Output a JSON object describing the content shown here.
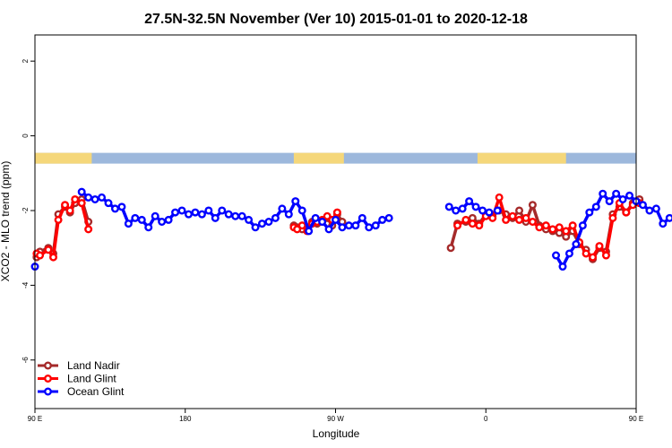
{
  "chart_data": {
    "type": "line",
    "title": "27.5N-32.5N November (Ver 10)   2015-01-01 to 2020-12-18",
    "xlabel": "Longitude",
    "ylabel": "XCO2 - MLO trend (ppm)",
    "xlim": [
      90,
      450
    ],
    "ylim": [
      -7.3,
      2.7
    ],
    "x_ticks": [
      {
        "value": 90,
        "label": "90 E"
      },
      {
        "value": 180,
        "label": "180"
      },
      {
        "value": 270,
        "label": "90 W"
      },
      {
        "value": 360,
        "label": "0"
      },
      {
        "value": 450,
        "label": "90 E"
      },
      {
        "value": 540,
        "label": "180"
      }
    ],
    "y_ticks": [
      {
        "value": 2,
        "label": "2"
      },
      {
        "value": 0,
        "label": "0"
      },
      {
        "value": -2,
        "label": "-2"
      },
      {
        "value": -4,
        "label": "-4"
      },
      {
        "value": -6,
        "label": "-6"
      }
    ],
    "legend_position": "bottom-left",
    "grid": false,
    "land_mask": {
      "y": -0.6,
      "land_color": "#f5d77a",
      "ocean_color": "#9db8dc",
      "land_ranges": [
        [
          90,
          124
        ],
        [
          245,
          275
        ],
        [
          355,
          408
        ],
        [
          500,
          550
        ]
      ]
    },
    "series": [
      {
        "name": "Land Nadir",
        "color": "#a52a2a",
        "segments": [
          [
            [
              91,
              -3.25
            ],
            [
              93,
              -3.1
            ],
            [
              98,
              -3.0
            ],
            [
              101,
              -3.15
            ],
            [
              104,
              -2.1
            ],
            [
              108,
              -1.9
            ],
            [
              111,
              -2.05
            ],
            [
              114,
              -1.8
            ],
            [
              118,
              -1.7
            ],
            [
              122,
              -2.3
            ]
          ],
          [
            [
              245,
              -2.4
            ],
            [
              247,
              -2.45
            ],
            [
              250,
              -2.5
            ],
            [
              253,
              -2.45
            ],
            [
              256,
              -2.3
            ],
            [
              259,
              -2.35
            ],
            [
              262,
              -2.3
            ],
            [
              265,
              -2.2
            ],
            [
              268,
              -2.4
            ],
            [
              271,
              -2.1
            ],
            [
              274,
              -2.3
            ]
          ],
          [
            [
              339,
              -3.0
            ],
            [
              343,
              -2.35
            ],
            [
              348,
              -2.3
            ],
            [
              352,
              -2.2
            ],
            [
              356,
              -2.35
            ],
            [
              360,
              -2.1
            ],
            [
              364,
              -2.15
            ],
            [
              368,
              -2.0
            ],
            [
              372,
              -2.1
            ],
            [
              376,
              -2.2
            ],
            [
              380,
              -2.0
            ],
            [
              384,
              -2.3
            ],
            [
              388,
              -1.85
            ],
            [
              392,
              -2.4
            ],
            [
              396,
              -2.5
            ],
            [
              400,
              -2.55
            ],
            [
              404,
              -2.6
            ],
            [
              408,
              -2.7
            ],
            [
              412,
              -2.55
            ],
            [
              416,
              -2.9
            ],
            [
              420,
              -3.05
            ],
            [
              424,
              -3.3
            ],
            [
              428,
              -3.0
            ],
            [
              432,
              -3.1
            ],
            [
              436,
              -2.1
            ],
            [
              440,
              -1.9
            ],
            [
              444,
              -2.05
            ],
            [
              448,
              -1.8
            ],
            [
              452,
              -1.7
            ]
          ],
          [
            [
              485,
              -2.3
            ]
          ]
        ]
      },
      {
        "name": "Land Glint",
        "color": "#ff0000",
        "segments": [
          [
            [
              91,
              -3.15
            ],
            [
              93,
              -3.2
            ],
            [
              98,
              -3.05
            ],
            [
              101,
              -3.25
            ],
            [
              104,
              -2.25
            ],
            [
              108,
              -1.85
            ],
            [
              111,
              -2.0
            ],
            [
              114,
              -1.7
            ],
            [
              118,
              -1.8
            ],
            [
              122,
              -2.5
            ]
          ],
          [
            [
              245,
              -2.45
            ],
            [
              247,
              -2.5
            ],
            [
              250,
              -2.4
            ],
            [
              253,
              -2.55
            ],
            [
              256,
              -2.35
            ],
            [
              259,
              -2.3
            ],
            [
              262,
              -2.25
            ],
            [
              265,
              -2.15
            ],
            [
              268,
              -2.25
            ],
            [
              271,
              -2.05
            ]
          ],
          [
            [
              343,
              -2.4
            ],
            [
              348,
              -2.25
            ],
            [
              352,
              -2.35
            ],
            [
              356,
              -2.4
            ],
            [
              360,
              -2.15
            ],
            [
              364,
              -2.2
            ],
            [
              368,
              -1.65
            ],
            [
              372,
              -2.25
            ],
            [
              376,
              -2.15
            ],
            [
              380,
              -2.25
            ],
            [
              384,
              -2.2
            ],
            [
              388,
              -2.3
            ],
            [
              392,
              -2.45
            ],
            [
              396,
              -2.4
            ],
            [
              400,
              -2.5
            ],
            [
              404,
              -2.45
            ],
            [
              408,
              -2.55
            ],
            [
              412,
              -2.4
            ],
            [
              416,
              -2.85
            ],
            [
              420,
              -3.15
            ],
            [
              424,
              -3.25
            ],
            [
              428,
              -2.95
            ],
            [
              432,
              -3.2
            ],
            [
              436,
              -2.2
            ],
            [
              440,
              -1.8
            ],
            [
              444,
              -2.05
            ],
            [
              448,
              -1.85
            ],
            [
              452,
              -1.8
            ]
          ],
          [
            [
              485,
              -2.5
            ]
          ]
        ]
      },
      {
        "name": "Ocean Glint",
        "color": "#0000ff",
        "segments": [
          [
            [
              90,
              -3.5
            ]
          ],
          [
            [
              118,
              -1.5
            ],
            [
              122,
              -1.65
            ],
            [
              126,
              -1.7
            ],
            [
              130,
              -1.65
            ],
            [
              134,
              -1.8
            ],
            [
              138,
              -1.95
            ],
            [
              142,
              -1.9
            ],
            [
              146,
              -2.35
            ],
            [
              150,
              -2.2
            ],
            [
              154,
              -2.25
            ],
            [
              158,
              -2.45
            ],
            [
              162,
              -2.15
            ],
            [
              166,
              -2.3
            ],
            [
              170,
              -2.25
            ],
            [
              174,
              -2.05
            ],
            [
              178,
              -2.0
            ],
            [
              182,
              -2.1
            ],
            [
              186,
              -2.05
            ],
            [
              190,
              -2.1
            ],
            [
              194,
              -2.0
            ],
            [
              198,
              -2.2
            ],
            [
              202,
              -2.0
            ],
            [
              206,
              -2.1
            ],
            [
              210,
              -2.15
            ],
            [
              214,
              -2.15
            ],
            [
              218,
              -2.25
            ],
            [
              222,
              -2.45
            ],
            [
              226,
              -2.35
            ],
            [
              230,
              -2.3
            ],
            [
              234,
              -2.2
            ],
            [
              238,
              -1.95
            ],
            [
              242,
              -2.1
            ],
            [
              246,
              -1.75
            ],
            [
              250,
              -2.0
            ],
            [
              254,
              -2.55
            ],
            [
              258,
              -2.2
            ],
            [
              262,
              -2.3
            ],
            [
              266,
              -2.5
            ],
            [
              270,
              -2.25
            ],
            [
              274,
              -2.45
            ],
            [
              278,
              -2.4
            ],
            [
              282,
              -2.4
            ],
            [
              286,
              -2.2
            ],
            [
              290,
              -2.45
            ],
            [
              294,
              -2.4
            ],
            [
              298,
              -2.25
            ],
            [
              302,
              -2.2
            ]
          ],
          [
            [
              338,
              -1.9
            ],
            [
              342,
              -2.0
            ],
            [
              346,
              -1.95
            ],
            [
              350,
              -1.75
            ],
            [
              354,
              -1.9
            ],
            [
              358,
              -2.0
            ],
            [
              362,
              -2.05
            ]
          ],
          [
            [
              367,
              -2.0
            ]
          ],
          [
            [
              402,
              -3.2
            ],
            [
              406,
              -3.5
            ],
            [
              410,
              -3.15
            ],
            [
              414,
              -2.9
            ],
            [
              418,
              -2.4
            ],
            [
              422,
              -2.05
            ],
            [
              426,
              -1.9
            ],
            [
              430,
              -1.55
            ],
            [
              434,
              -1.75
            ],
            [
              438,
              -1.55
            ],
            [
              442,
              -1.7
            ],
            [
              446,
              -1.6
            ],
            [
              450,
              -1.75
            ],
            [
              454,
              -1.85
            ],
            [
              458,
              -2.0
            ],
            [
              462,
              -1.95
            ],
            [
              466,
              -2.35
            ],
            [
              470,
              -2.2
            ],
            [
              474,
              -2.25
            ],
            [
              478,
              -2.45
            ],
            [
              482,
              -2.1
            ]
          ]
        ]
      }
    ]
  }
}
